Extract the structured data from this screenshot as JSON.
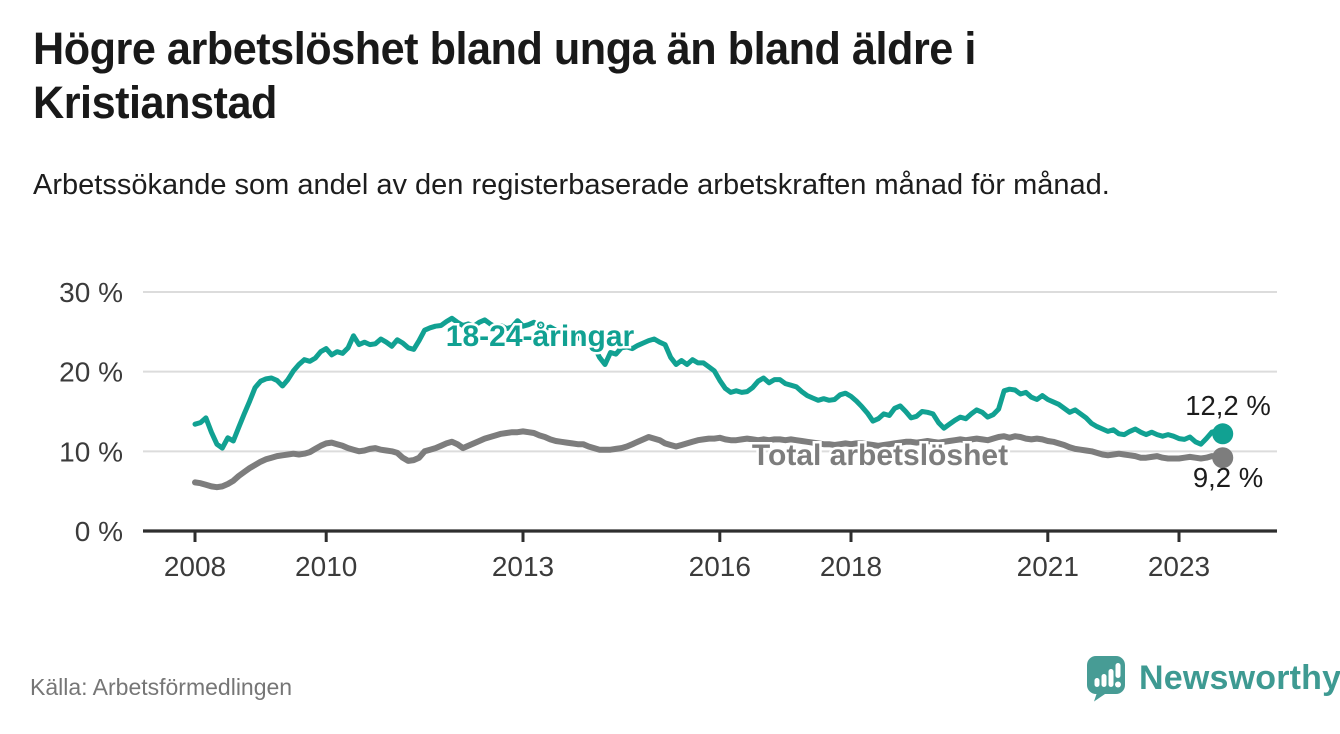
{
  "header": {
    "title": "Högre arbetslöshet bland unga än bland äldre i Kristianstad",
    "subtitle": "Arbetssökande som andel av den registerbaserade arbetskraften månad för månad."
  },
  "chart_data": {
    "type": "line",
    "unit": "%",
    "frequency": "monthly",
    "x_start": "2008-01",
    "x_end": "2023-09",
    "grid": "horizontal",
    "legend_position": "inline-labels",
    "y_axis": {
      "min": 0,
      "max": 30,
      "tick_values": [
        30,
        20,
        10,
        0
      ],
      "tick_labels": [
        "30 %",
        "20 %",
        "10 %",
        "0 %"
      ]
    },
    "x_axis": {
      "tick_years": [
        2008,
        2010,
        2013,
        2016,
        2018,
        2021,
        2023
      ],
      "tick_labels": [
        "2008",
        "2010",
        "2013",
        "2016",
        "2018",
        "2021",
        "2023"
      ]
    },
    "series": [
      {
        "name": "18-24-åringar",
        "color": "#11a192",
        "end_value": 12.2,
        "end_label": "12,2 %",
        "values": [
          13.4,
          13.6,
          14.2,
          12.4,
          10.9,
          10.4,
          11.7,
          11.3,
          13.0,
          14.7,
          16.3,
          18.0,
          18.8,
          19.1,
          19.2,
          18.9,
          18.2,
          19.0,
          20.1,
          20.9,
          21.5,
          21.3,
          21.7,
          22.5,
          22.9,
          22.1,
          22.5,
          22.3,
          23.0,
          24.5,
          23.4,
          23.7,
          23.4,
          23.5,
          24.1,
          23.7,
          23.2,
          24.0,
          23.6,
          23.0,
          22.8,
          23.9,
          25.2,
          25.5,
          25.7,
          25.8,
          26.3,
          26.7,
          26.2,
          25.8,
          26.0,
          25.7,
          26.2,
          26.5,
          26.0,
          25.6,
          25.8,
          25.4,
          25.6,
          26.4,
          25.7,
          25.9,
          26.2,
          25.8,
          25.4,
          25.6,
          25.2,
          24.8,
          25.0,
          24.6,
          24.2,
          24.4,
          24.0,
          23.2,
          21.8,
          20.9,
          22.4,
          22.2,
          23.0,
          23.1,
          22.9,
          23.3,
          23.6,
          23.9,
          24.1,
          23.7,
          23.4,
          21.8,
          20.9,
          21.4,
          20.9,
          21.5,
          21.1,
          21.1,
          20.6,
          20.1,
          18.9,
          17.9,
          17.4,
          17.6,
          17.4,
          17.5,
          18.0,
          18.8,
          19.2,
          18.6,
          19.0,
          19.0,
          18.5,
          18.3,
          18.1,
          17.5,
          17.0,
          16.7,
          16.4,
          16.6,
          16.4,
          16.5,
          17.1,
          17.3,
          16.9,
          16.3,
          15.6,
          14.8,
          13.8,
          14.1,
          14.7,
          14.5,
          15.4,
          15.7,
          15.0,
          14.2,
          14.4,
          15.0,
          14.9,
          14.7,
          13.6,
          12.9,
          13.4,
          13.9,
          14.3,
          14.1,
          14.7,
          15.2,
          14.9,
          14.3,
          14.6,
          15.3,
          17.6,
          17.8,
          17.7,
          17.2,
          17.4,
          16.8,
          16.5,
          17.0,
          16.5,
          16.2,
          15.9,
          15.4,
          14.9,
          15.2,
          14.7,
          14.2,
          13.5,
          13.1,
          12.8,
          12.5,
          12.7,
          12.2,
          12.1,
          12.5,
          12.8,
          12.4,
          12.1,
          12.4,
          12.1,
          11.9,
          12.1,
          11.9,
          11.6,
          11.5,
          11.8,
          11.2,
          10.9,
          11.6,
          12.4,
          12.6,
          12.2
        ]
      },
      {
        "name": "Total arbetslöshet",
        "color": "#7d7d7d",
        "end_value": 9.2,
        "end_label": "9,2 %",
        "values": [
          6.1,
          6.0,
          5.8,
          5.6,
          5.5,
          5.6,
          5.9,
          6.3,
          6.9,
          7.4,
          7.9,
          8.3,
          8.7,
          9.0,
          9.2,
          9.4,
          9.5,
          9.6,
          9.7,
          9.6,
          9.7,
          9.9,
          10.3,
          10.7,
          11.0,
          11.1,
          10.9,
          10.7,
          10.4,
          10.2,
          10.0,
          10.1,
          10.3,
          10.4,
          10.2,
          10.1,
          10.0,
          9.8,
          9.2,
          8.8,
          8.9,
          9.2,
          10.0,
          10.2,
          10.4,
          10.7,
          11.0,
          11.2,
          10.9,
          10.4,
          10.7,
          11.0,
          11.3,
          11.6,
          11.8,
          12.0,
          12.2,
          12.3,
          12.4,
          12.4,
          12.5,
          12.4,
          12.3,
          12.0,
          11.8,
          11.5,
          11.3,
          11.2,
          11.1,
          11.0,
          10.9,
          10.9,
          10.6,
          10.4,
          10.2,
          10.2,
          10.2,
          10.3,
          10.4,
          10.6,
          10.9,
          11.2,
          11.5,
          11.8,
          11.6,
          11.4,
          11.0,
          10.8,
          10.6,
          10.8,
          11.0,
          11.2,
          11.4,
          11.5,
          11.6,
          11.6,
          11.7,
          11.5,
          11.4,
          11.4,
          11.5,
          11.6,
          11.5,
          11.4,
          11.5,
          11.4,
          11.5,
          11.5,
          11.4,
          11.5,
          11.4,
          11.3,
          11.2,
          11.1,
          11.0,
          10.9,
          10.9,
          10.8,
          10.9,
          11.0,
          10.9,
          11.0,
          11.0,
          10.9,
          10.8,
          10.7,
          10.8,
          10.9,
          11.0,
          11.1,
          11.2,
          11.2,
          11.1,
          11.2,
          11.3,
          11.2,
          11.1,
          11.2,
          11.3,
          11.4,
          11.5,
          11.4,
          11.5,
          11.6,
          11.5,
          11.4,
          11.6,
          11.8,
          11.9,
          11.7,
          11.9,
          11.8,
          11.6,
          11.5,
          11.6,
          11.5,
          11.3,
          11.2,
          11.0,
          10.8,
          10.5,
          10.3,
          10.2,
          10.1,
          10.0,
          9.8,
          9.6,
          9.5,
          9.6,
          9.7,
          9.6,
          9.5,
          9.4,
          9.2,
          9.2,
          9.3,
          9.4,
          9.2,
          9.1,
          9.1,
          9.1,
          9.2,
          9.3,
          9.2,
          9.1,
          9.2,
          9.4,
          9.3,
          9.2
        ]
      }
    ]
  },
  "footer": {
    "source": "Källa: Arbetsförmedlingen",
    "logo_text": "Newsworthy"
  },
  "colors": {
    "title_text": "#191919",
    "accent_teal": "#11a192",
    "line_gray": "#7d7d7d",
    "annotation_text": "#1c1c1c",
    "axis_text": "#3b3b3b",
    "grid_line": "#dcdcdc",
    "axis_line": "#2e2e2e",
    "source_text": "#767676",
    "logo_teal": "#479c95",
    "logo_text_teal": "#3e9a92"
  }
}
